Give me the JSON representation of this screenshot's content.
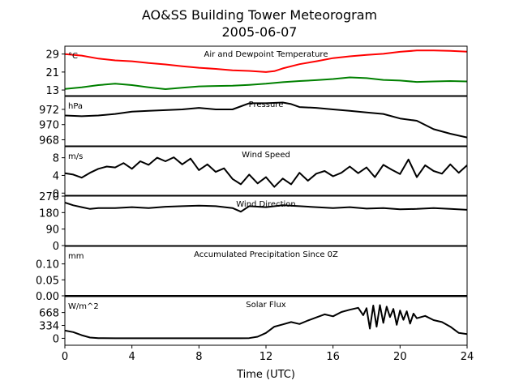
{
  "figure": {
    "title_line1": "AO&SS Building Tower Meteorogram",
    "title_line2": "2005-06-07",
    "xlabel": "Time (UTC)"
  },
  "chart_data": {
    "type": "line",
    "title": "AO&SS Building Tower Meteorogram 2005-06-07",
    "xlabel": "Time (UTC)",
    "xlim": [
      0,
      24
    ],
    "xticks": [
      0,
      4,
      8,
      12,
      16,
      20,
      24
    ],
    "grid": false,
    "panels": [
      {
        "id": "temp",
        "title": "Air and Dewpoint Temperature",
        "unit": "°C",
        "ylim": [
          10.5,
          32.5
        ],
        "yticks": [
          13,
          21,
          29
        ],
        "series": [
          {
            "color": "#ff0000",
            "x": [
              0,
              1,
              2,
              3,
              4,
              5,
              6,
              7,
              8,
              9,
              10,
              11,
              12,
              12.5,
              13,
              14,
              15,
              16,
              17,
              18,
              19,
              20,
              21,
              22,
              23,
              24
            ],
            "y": [
              29,
              28.3,
              27,
              26.2,
              25.8,
              25,
              24.4,
              23.6,
              22.9,
              22.4,
              21.8,
              21.5,
              21,
              21.4,
              22.6,
              24.5,
              25.8,
              27.2,
              28,
              28.6,
              29.1,
              30,
              30.6,
              30.6,
              30.4,
              30.1
            ]
          },
          {
            "color": "#008000",
            "x": [
              0,
              1,
              2,
              3,
              4,
              5,
              6,
              7,
              8,
              9,
              10,
              11,
              12,
              13,
              14,
              15,
              16,
              17,
              18,
              19,
              20,
              21,
              22,
              23,
              24
            ],
            "y": [
              13.5,
              14.2,
              15.2,
              15.8,
              15.2,
              14.2,
              13.4,
              14,
              14.6,
              14.8,
              14.9,
              15.3,
              15.8,
              16.5,
              17,
              17.4,
              17.9,
              18.6,
              18.3,
              17.5,
              17.2,
              16.6,
              16.8,
              17,
              16.8
            ]
          }
        ]
      },
      {
        "id": "pressure",
        "title": "Pressure",
        "unit": "hPa",
        "ylim": [
          967.2,
          973.7
        ],
        "yticks": [
          968,
          970,
          972
        ],
        "series": [
          {
            "color": "#000000",
            "x": [
              0,
              1,
              2,
              3,
              4,
              5,
              6,
              7,
              8,
              9,
              10,
              11,
              12,
              13,
              13.5,
              14,
              15,
              16,
              17,
              18,
              19,
              20,
              21,
              22,
              23,
              24
            ],
            "y": [
              971.2,
              971.1,
              971.2,
              971.4,
              971.7,
              971.8,
              971.9,
              972,
              972.2,
              972,
              972,
              972.8,
              972.8,
              972.9,
              972.7,
              972.3,
              972.2,
              972,
              971.8,
              971.6,
              971.4,
              970.8,
              970.5,
              969.4,
              968.8,
              968.3
            ]
          }
        ]
      },
      {
        "id": "wind_speed",
        "title": "Wind Speed",
        "unit": "m/s",
        "ylim": [
          -0.5,
          10.5
        ],
        "yticks": [
          0,
          4,
          8
        ],
        "series": [
          {
            "color": "#000000",
            "x": [
              0,
              0.5,
              1,
              1.5,
              2,
              2.5,
              3,
              3.5,
              4,
              4.5,
              5,
              5.5,
              6,
              6.5,
              7,
              7.5,
              8,
              8.5,
              9,
              9.5,
              10,
              10.5,
              11,
              11.5,
              12,
              12.5,
              13,
              13.5,
              14,
              14.5,
              15,
              15.5,
              16,
              16.5,
              17,
              17.5,
              18,
              18.5,
              19,
              19.5,
              20,
              20.5,
              21,
              21.5,
              22,
              22.5,
              23,
              23.5,
              24
            ],
            "y": [
              4.5,
              4.2,
              3.5,
              4.6,
              5.5,
              6,
              5.8,
              6.8,
              5.5,
              7.2,
              6.4,
              8,
              7.2,
              8.1,
              6.5,
              7.8,
              5.2,
              6.5,
              4.8,
              5.6,
              3.2,
              2,
              4.2,
              2.2,
              3.6,
              1.4,
              3.3,
              2,
              4.6,
              2.8,
              4.4,
              5,
              3.8,
              4.6,
              6,
              4.5,
              5.8,
              3.6,
              6.4,
              5.3,
              4.3,
              7.6,
              3.6,
              6.3,
              5,
              4.4,
              6.5,
              4.6,
              6.3
            ]
          }
        ]
      },
      {
        "id": "wind_dir",
        "title": "Wind Direction",
        "unit": "",
        "ylim": [
          0,
          270
        ],
        "yticks": [
          0,
          90,
          180,
          270
        ],
        "series": [
          {
            "color": "#000000",
            "x": [
              0,
              0.5,
              1,
              1.5,
              2,
              3,
              4,
              5,
              6,
              7,
              8,
              9,
              10,
              10.5,
              11,
              12,
              13,
              14,
              15,
              16,
              17,
              18,
              19,
              20,
              21,
              22,
              23,
              24
            ],
            "y": [
              235,
              220,
              210,
              200,
              205,
              205,
              210,
              205,
              212,
              215,
              218,
              215,
              205,
              185,
              215,
              210,
              220,
              215,
              210,
              205,
              210,
              202,
              205,
              198,
              200,
              205,
              200,
              195
            ]
          }
        ]
      },
      {
        "id": "precip",
        "title": "Accumulated Precipitation Since 0Z",
        "unit": "mm",
        "ylim": [
          0,
          0.155
        ],
        "yticks": [
          0.0,
          0.05,
          0.1
        ],
        "ytick_labels": [
          "0.00",
          "0.05",
          "0.10"
        ],
        "series": [
          {
            "color": "#000000",
            "x": [
              0,
              24
            ],
            "y": [
              0,
              0
            ]
          }
        ]
      },
      {
        "id": "solar",
        "title": "Solar Flux",
        "unit": "W/m^2",
        "ylim": [
          -180,
          1080
        ],
        "yticks": [
          0,
          334,
          668
        ],
        "series": [
          {
            "color": "#000000",
            "x": [
              0,
              0.5,
              1,
              1.5,
              2,
              3,
              4,
              5,
              6,
              7,
              8,
              9,
              10,
              10.5,
              11,
              11.5,
              12,
              12.5,
              13,
              13.5,
              14,
              14.5,
              15,
              15.5,
              16,
              16.5,
              17,
              17.5,
              17.8,
              18,
              18.2,
              18.4,
              18.6,
              18.8,
              19,
              19.2,
              19.4,
              19.6,
              19.8,
              20,
              20.2,
              20.4,
              20.6,
              20.8,
              21,
              21.5,
              22,
              22.5,
              23,
              23.5,
              24
            ],
            "y": [
              200,
              160,
              80,
              20,
              5,
              0,
              0,
              0,
              0,
              0,
              0,
              0,
              0,
              0,
              5,
              40,
              140,
              300,
              360,
              420,
              370,
              460,
              540,
              620,
              570,
              680,
              740,
              790,
              600,
              780,
              250,
              850,
              300,
              860,
              400,
              820,
              550,
              760,
              350,
              720,
              480,
              700,
              380,
              640,
              520,
              580,
              470,
              420,
              300,
              140,
              110
            ]
          }
        ]
      }
    ]
  }
}
